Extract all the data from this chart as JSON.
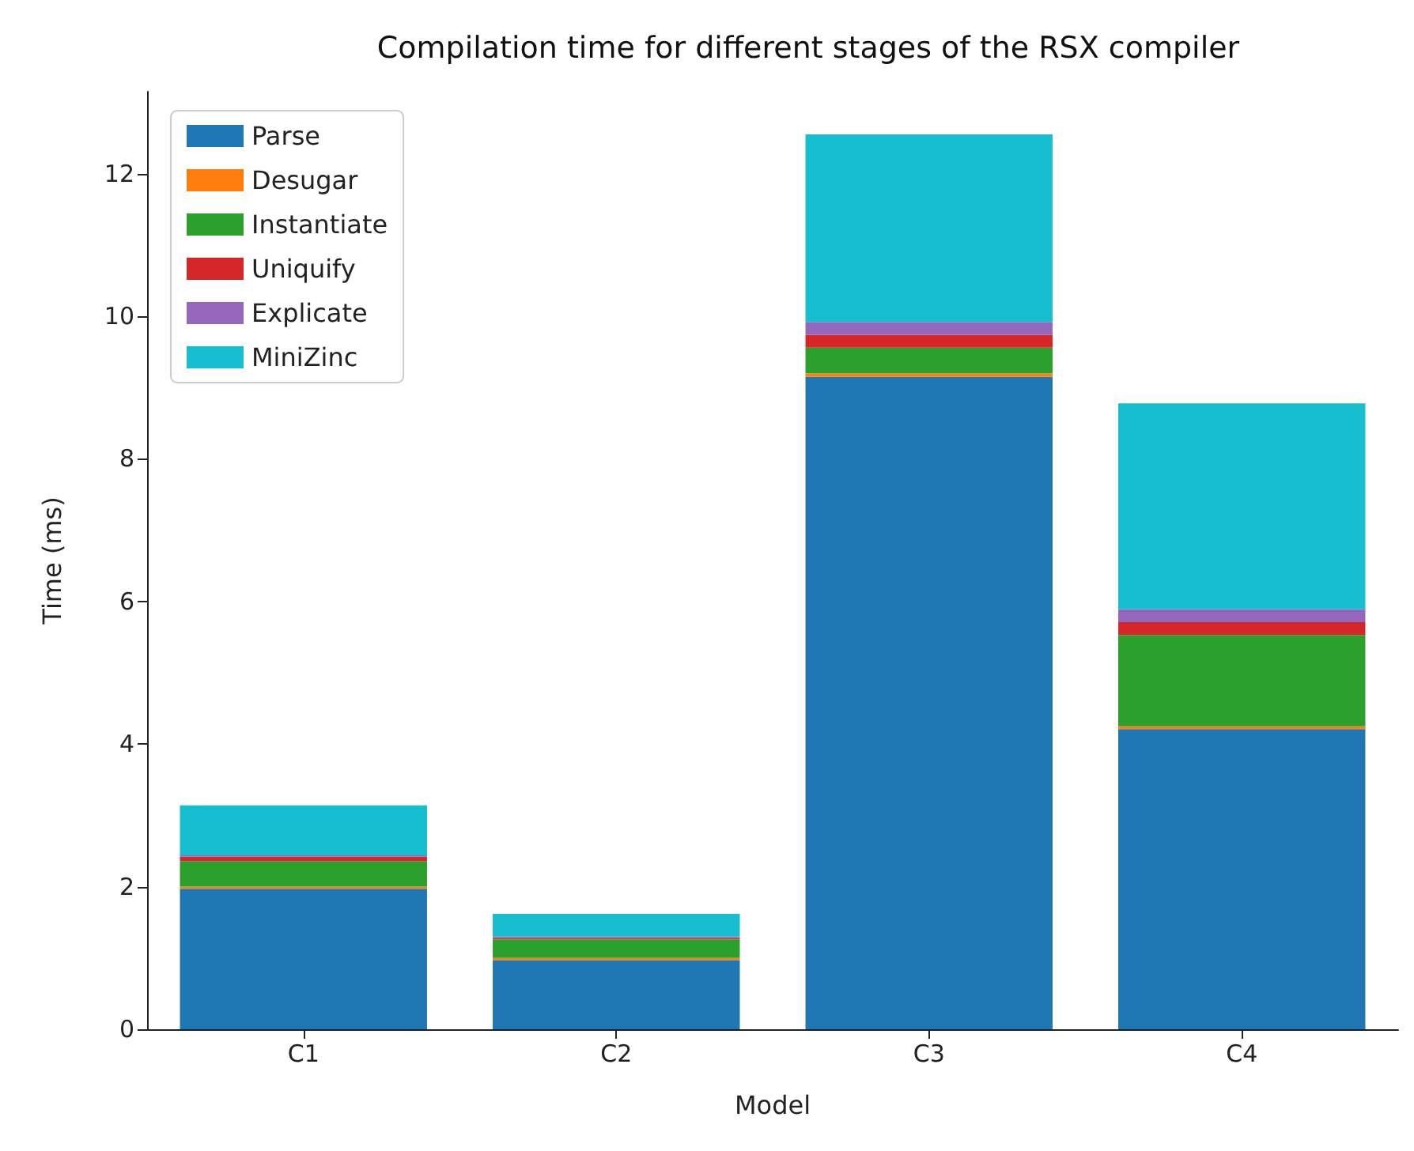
{
  "chart_data": {
    "type": "bar",
    "title": "Compilation time for different stages of the RSX compiler",
    "xlabel": "Model",
    "ylabel": "Time (ms)",
    "categories": [
      "C1",
      "C2",
      "C3",
      "C4"
    ],
    "stacked": true,
    "series": [
      {
        "name": "Parse",
        "color": "#1f77b4",
        "values": [
          1.97,
          0.97,
          9.15,
          4.21
        ]
      },
      {
        "name": "Desugar",
        "color": "#ff7f0e",
        "values": [
          0.03,
          0.03,
          0.05,
          0.04
        ]
      },
      {
        "name": "Instantiate",
        "color": "#2ca02c",
        "values": [
          0.36,
          0.26,
          0.36,
          1.28
        ]
      },
      {
        "name": "Uniquify",
        "color": "#d62728",
        "values": [
          0.06,
          0.02,
          0.18,
          0.18
        ]
      },
      {
        "name": "Explicate",
        "color": "#9467bd",
        "values": [
          0.02,
          0.02,
          0.18,
          0.18
        ]
      },
      {
        "name": "MiniZinc",
        "color": "#17becf",
        "values": [
          0.7,
          0.32,
          2.63,
          2.89
        ]
      }
    ],
    "ylim": [
      0,
      13.15
    ],
    "yticks": [
      0,
      2,
      4,
      6,
      8,
      10,
      12
    ],
    "grid": false,
    "legend": "top left"
  }
}
